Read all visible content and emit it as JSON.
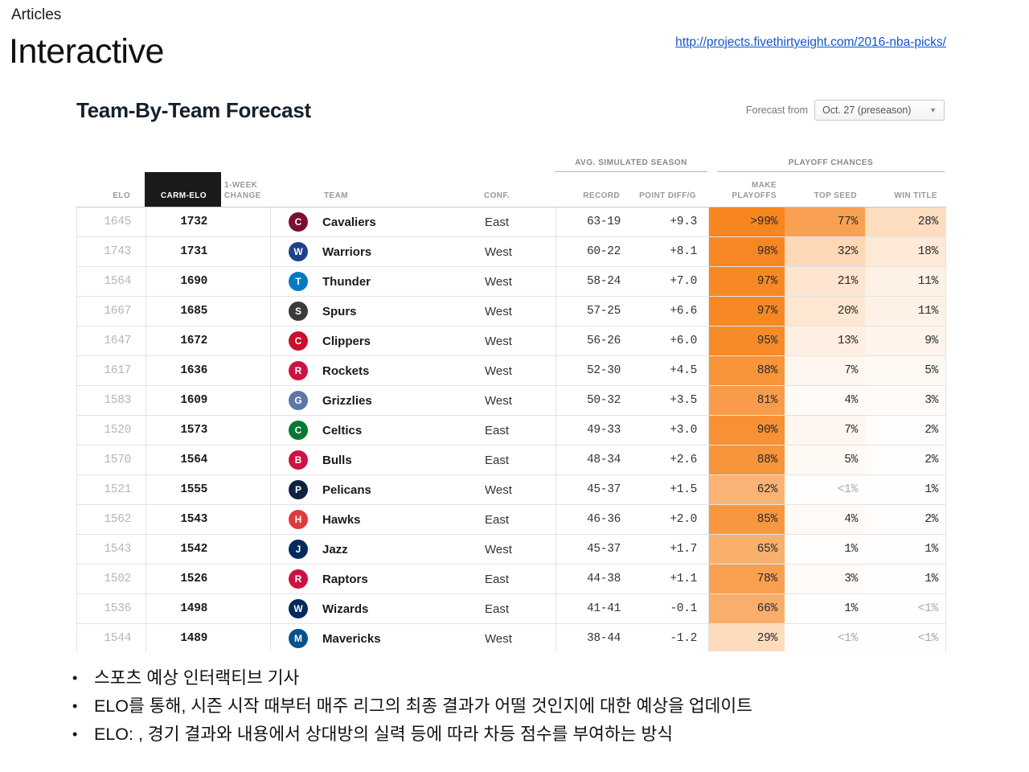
{
  "header": {
    "eyebrow": "Articles",
    "title": "Interactive",
    "link": "http://projects.fivethirtyeight.com/2016-nba-picks/"
  },
  "forecast": {
    "title": "Team-By-Team Forecast",
    "forecast_from_label": "Forecast from",
    "dropdown_value": "Oct. 27 (preseason)",
    "dropdown_caret": "▼",
    "group_headers": {
      "season": "AVG. SIMULATED SEASON",
      "playoffs": "PLAYOFF CHANCES"
    },
    "columns": {
      "elo": "ELO",
      "carmelo": "CARM-ELO",
      "week_change": "1-WEEK CHANGE",
      "team": "TEAM",
      "conf": "CONF.",
      "record": "RECORD",
      "point_diff": "POINT DIFF/G",
      "make_playoffs": "MAKE PLAYOFFS",
      "top_seed": "TOP SEED",
      "win_title": "WIN TITLE"
    },
    "rows": [
      {
        "elo": "1645",
        "carmelo": "1732",
        "team": "Cavaliers",
        "logo_color": "#7a0f30",
        "conf": "East",
        "record": "63-19",
        "point_diff": "+9.3",
        "make_playoffs": ">99%",
        "top_seed": "77%",
        "win_title": "28%"
      },
      {
        "elo": "1743",
        "carmelo": "1731",
        "team": "Warriors",
        "logo_color": "#1d428a",
        "conf": "West",
        "record": "60-22",
        "point_diff": "+8.1",
        "make_playoffs": "98%",
        "top_seed": "32%",
        "win_title": "18%"
      },
      {
        "elo": "1564",
        "carmelo": "1690",
        "team": "Thunder",
        "logo_color": "#007ac1",
        "conf": "West",
        "record": "58-24",
        "point_diff": "+7.0",
        "make_playoffs": "97%",
        "top_seed": "21%",
        "win_title": "11%"
      },
      {
        "elo": "1667",
        "carmelo": "1685",
        "team": "Spurs",
        "logo_color": "#3a3a3a",
        "conf": "West",
        "record": "57-25",
        "point_diff": "+6.6",
        "make_playoffs": "97%",
        "top_seed": "20%",
        "win_title": "11%"
      },
      {
        "elo": "1647",
        "carmelo": "1672",
        "team": "Clippers",
        "logo_color": "#c8102e",
        "conf": "West",
        "record": "56-26",
        "point_diff": "+6.0",
        "make_playoffs": "95%",
        "top_seed": "13%",
        "win_title": "9%"
      },
      {
        "elo": "1617",
        "carmelo": "1636",
        "team": "Rockets",
        "logo_color": "#ce1141",
        "conf": "West",
        "record": "52-30",
        "point_diff": "+4.5",
        "make_playoffs": "88%",
        "top_seed": "7%",
        "win_title": "5%"
      },
      {
        "elo": "1583",
        "carmelo": "1609",
        "team": "Grizzlies",
        "logo_color": "#5d76a9",
        "conf": "West",
        "record": "50-32",
        "point_diff": "+3.5",
        "make_playoffs": "81%",
        "top_seed": "4%",
        "win_title": "3%"
      },
      {
        "elo": "1520",
        "carmelo": "1573",
        "team": "Celtics",
        "logo_color": "#007a33",
        "conf": "East",
        "record": "49-33",
        "point_diff": "+3.0",
        "make_playoffs": "90%",
        "top_seed": "7%",
        "win_title": "2%"
      },
      {
        "elo": "1570",
        "carmelo": "1564",
        "team": "Bulls",
        "logo_color": "#ce1141",
        "conf": "East",
        "record": "48-34",
        "point_diff": "+2.6",
        "make_playoffs": "88%",
        "top_seed": "5%",
        "win_title": "2%"
      },
      {
        "elo": "1521",
        "carmelo": "1555",
        "team": "Pelicans",
        "logo_color": "#0c2340",
        "conf": "West",
        "record": "45-37",
        "point_diff": "+1.5",
        "make_playoffs": "62%",
        "top_seed": "<1%",
        "win_title": "1%"
      },
      {
        "elo": "1562",
        "carmelo": "1543",
        "team": "Hawks",
        "logo_color": "#e03a3e",
        "conf": "East",
        "record": "46-36",
        "point_diff": "+2.0",
        "make_playoffs": "85%",
        "top_seed": "4%",
        "win_title": "2%"
      },
      {
        "elo": "1543",
        "carmelo": "1542",
        "team": "Jazz",
        "logo_color": "#002b5c",
        "conf": "West",
        "record": "45-37",
        "point_diff": "+1.7",
        "make_playoffs": "65%",
        "top_seed": "1%",
        "win_title": "1%"
      },
      {
        "elo": "1502",
        "carmelo": "1526",
        "team": "Raptors",
        "logo_color": "#ce1141",
        "conf": "East",
        "record": "44-38",
        "point_diff": "+1.1",
        "make_playoffs": "78%",
        "top_seed": "3%",
        "win_title": "1%"
      },
      {
        "elo": "1536",
        "carmelo": "1498",
        "team": "Wizards",
        "logo_color": "#002b5c",
        "conf": "East",
        "record": "41-41",
        "point_diff": "-0.1",
        "make_playoffs": "66%",
        "top_seed": "1%",
        "win_title": "<1%"
      },
      {
        "elo": "1544",
        "carmelo": "1489",
        "team": "Mavericks",
        "logo_color": "#00538c",
        "conf": "West",
        "record": "38-44",
        "point_diff": "-1.2",
        "make_playoffs": "29%",
        "top_seed": "<1%",
        "win_title": "<1%"
      }
    ]
  },
  "notes": {
    "bullets": [
      "스포츠 예상 인터랙티브 기사",
      "ELO를 통해, 시즌 시작 때부터 매주 리그의 최종 결과가 어떨 것인지에 대한 예상을 업데이트",
      "ELO: , 경기 결과와 내용에서 상대방의 실력 등에 따라 차등 점수를 부여하는 방식"
    ]
  },
  "colors": {
    "accent_orange": "#f6851e",
    "link_blue": "#1155cc",
    "carmelo_header_bg": "#1a1a1a"
  }
}
